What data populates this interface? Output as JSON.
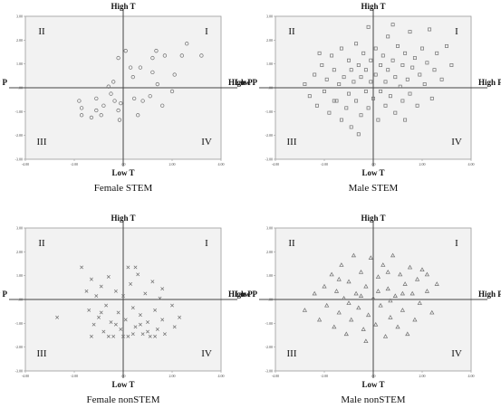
{
  "figure": {
    "background": "#ffffff",
    "plot_bg": "#f2f2f2",
    "frame_color": "#9a9a9a",
    "axis_color": "#444444",
    "marker_color": "#6e6e6e"
  },
  "chart_data": [
    {
      "type": "scatter",
      "title": "Female STEM",
      "quadrants": [
        "I",
        "II",
        "III",
        "IV"
      ],
      "axis_labels": {
        "top": "High T",
        "bottom": "Low T",
        "left": "Low P",
        "right": "High P"
      },
      "marker": "circle",
      "xlim": [
        -4.0,
        4.0
      ],
      "ylim": [
        -3.0,
        3.0
      ],
      "xticks": [
        "-4.00",
        "-2.00",
        ".00",
        "2.00",
        "4.00"
      ],
      "yticks": [
        "3.00",
        "2.00",
        "1.00",
        ".00",
        "-1.00",
        "-2.00",
        "-3.00"
      ],
      "points": [
        [
          -1.8,
          -0.55
        ],
        [
          -1.7,
          -0.85
        ],
        [
          -1.7,
          -1.15
        ],
        [
          -1.3,
          -1.25
        ],
        [
          -1.1,
          -0.45
        ],
        [
          -1.1,
          -0.95
        ],
        [
          -0.9,
          -1.15
        ],
        [
          -0.8,
          -0.75
        ],
        [
          -0.6,
          0.05
        ],
        [
          -0.5,
          -0.25
        ],
        [
          -0.4,
          0.25
        ],
        [
          -0.35,
          -0.55
        ],
        [
          -0.2,
          -0.95
        ],
        [
          -0.15,
          -1.35
        ],
        [
          -0.1,
          -0.65
        ],
        [
          0.1,
          1.55
        ],
        [
          0.3,
          0.85
        ],
        [
          0.4,
          0.45
        ],
        [
          0.45,
          -0.45
        ],
        [
          0.6,
          -1.15
        ],
        [
          0.7,
          0.85
        ],
        [
          0.8,
          -0.55
        ],
        [
          1.1,
          -0.35
        ],
        [
          1.2,
          0.65
        ],
        [
          1.2,
          1.25
        ],
        [
          1.35,
          1.55
        ],
        [
          1.4,
          0.15
        ],
        [
          1.6,
          -0.75
        ],
        [
          1.7,
          1.35
        ],
        [
          2.0,
          -0.15
        ],
        [
          2.1,
          0.55
        ],
        [
          2.4,
          1.35
        ],
        [
          2.6,
          1.85
        ],
        [
          -0.2,
          1.25
        ],
        [
          3.2,
          1.35
        ]
      ]
    },
    {
      "type": "scatter",
      "title": "Male STEM",
      "quadrants": [
        "I",
        "II",
        "III",
        "IV"
      ],
      "axis_labels": {
        "top": "High T",
        "bottom": "Low T",
        "left": "Low P",
        "right": "High P"
      },
      "marker": "square",
      "xlim": [
        -4.0,
        4.0
      ],
      "ylim": [
        -3.0,
        3.0
      ],
      "xticks": [
        "-4.00",
        "-2.00",
        ".00",
        "2.00",
        "4.00"
      ],
      "yticks": [
        "3.00",
        "2.00",
        "1.00",
        ".00",
        "-1.00",
        "-2.00",
        "-3.00"
      ],
      "points": [
        [
          -2.8,
          0.15
        ],
        [
          -2.6,
          -0.35
        ],
        [
          -2.4,
          0.55
        ],
        [
          -2.3,
          -0.75
        ],
        [
          -2.1,
          0.95
        ],
        [
          -2.0,
          -0.15
        ],
        [
          -1.9,
          0.35
        ],
        [
          -1.8,
          -1.05
        ],
        [
          -1.7,
          1.35
        ],
        [
          -1.6,
          0.75
        ],
        [
          -1.5,
          -0.55
        ],
        [
          -1.4,
          0.15
        ],
        [
          -1.3,
          1.65
        ],
        [
          -1.3,
          -1.35
        ],
        [
          -1.2,
          0.45
        ],
        [
          -1.1,
          -0.85
        ],
        [
          -1.0,
          1.15
        ],
        [
          -1.0,
          -0.25
        ],
        [
          -0.9,
          0.75
        ],
        [
          -0.9,
          -1.65
        ],
        [
          -0.8,
          0.25
        ],
        [
          -0.7,
          1.85
        ],
        [
          -0.7,
          -0.55
        ],
        [
          -0.6,
          0.95
        ],
        [
          -0.5,
          -1.15
        ],
        [
          -0.5,
          0.45
        ],
        [
          -0.4,
          1.45
        ],
        [
          -0.3,
          -0.15
        ],
        [
          -0.3,
          0.75
        ],
        [
          -0.2,
          -0.85
        ],
        [
          -0.1,
          1.15
        ],
        [
          -0.1,
          0.25
        ],
        [
          0.0,
          -0.45
        ],
        [
          0.1,
          1.65
        ],
        [
          0.1,
          0.55
        ],
        [
          0.2,
          -1.35
        ],
        [
          0.3,
          0.95
        ],
        [
          0.3,
          -0.15
        ],
        [
          0.4,
          1.35
        ],
        [
          0.5,
          0.25
        ],
        [
          0.5,
          -0.75
        ],
        [
          0.6,
          2.15
        ],
        [
          0.6,
          0.75
        ],
        [
          0.7,
          -0.35
        ],
        [
          0.8,
          1.15
        ],
        [
          0.9,
          0.45
        ],
        [
          0.9,
          -1.05
        ],
        [
          1.0,
          1.75
        ],
        [
          1.1,
          0.05
        ],
        [
          1.2,
          0.95
        ],
        [
          1.2,
          -0.55
        ],
        [
          1.3,
          1.45
        ],
        [
          1.4,
          0.35
        ],
        [
          1.5,
          2.35
        ],
        [
          1.5,
          -0.25
        ],
        [
          1.6,
          0.85
        ],
        [
          1.7,
          1.25
        ],
        [
          1.8,
          -0.75
        ],
        [
          1.9,
          0.55
        ],
        [
          2.0,
          1.65
        ],
        [
          2.1,
          0.15
        ],
        [
          2.2,
          1.05
        ],
        [
          2.3,
          2.45
        ],
        [
          2.4,
          -0.45
        ],
        [
          2.5,
          0.75
        ],
        [
          2.6,
          1.45
        ],
        [
          2.8,
          0.35
        ],
        [
          3.0,
          1.75
        ],
        [
          3.2,
          0.95
        ],
        [
          -1.6,
          -0.55
        ],
        [
          -0.2,
          2.55
        ],
        [
          0.8,
          2.65
        ],
        [
          -2.2,
          1.45
        ],
        [
          1.3,
          -1.35
        ],
        [
          -0.6,
          -1.95
        ]
      ]
    },
    {
      "type": "scatter",
      "title": "Female nonSTEM",
      "quadrants": [
        "I",
        "II",
        "III",
        "IV"
      ],
      "axis_labels": {
        "top": "High T",
        "bottom": "Low T",
        "left": "Low P",
        "right": "High P"
      },
      "marker": "cross",
      "xlim": [
        -4.0,
        4.0
      ],
      "ylim": [
        -3.0,
        3.0
      ],
      "xticks": [
        "-4.00",
        "-2.00",
        ".00",
        "2.00",
        "4.00"
      ],
      "yticks": [
        "3.00",
        "2.00",
        "1.00",
        ".00",
        "-1.00",
        "-2.00",
        "-3.00"
      ],
      "points": [
        [
          -2.7,
          -0.75
        ],
        [
          -1.7,
          1.35
        ],
        [
          -1.5,
          0.35
        ],
        [
          -1.4,
          -0.45
        ],
        [
          -1.3,
          0.85
        ],
        [
          -1.2,
          -1.05
        ],
        [
          -1.1,
          0.15
        ],
        [
          -1.0,
          -0.75
        ],
        [
          -0.9,
          0.55
        ],
        [
          -0.8,
          -1.35
        ],
        [
          -0.7,
          -0.25
        ],
        [
          -0.6,
          0.95
        ],
        [
          -0.5,
          -0.95
        ],
        [
          -0.4,
          -1.55
        ],
        [
          -0.3,
          0.35
        ],
        [
          -0.2,
          -0.55
        ],
        [
          -0.1,
          -1.25
        ],
        [
          0.0,
          0.15
        ],
        [
          0.1,
          -0.85
        ],
        [
          0.2,
          -1.55
        ],
        [
          0.3,
          0.65
        ],
        [
          0.4,
          -0.35
        ],
        [
          0.5,
          -1.15
        ],
        [
          0.6,
          1.05
        ],
        [
          0.7,
          -0.65
        ],
        [
          0.8,
          -1.45
        ],
        [
          0.9,
          0.25
        ],
        [
          1.0,
          -0.95
        ],
        [
          1.1,
          -1.55
        ],
        [
          1.2,
          0.75
        ],
        [
          1.3,
          -0.45
        ],
        [
          1.4,
          -1.25
        ],
        [
          1.5,
          0.05
        ],
        [
          1.6,
          -0.85
        ],
        [
          1.7,
          -1.45
        ],
        [
          2.0,
          -0.25
        ],
        [
          2.1,
          -1.15
        ],
        [
          -0.6,
          -1.55
        ],
        [
          -0.3,
          -1.05
        ],
        [
          0.0,
          -1.55
        ],
        [
          0.4,
          -1.45
        ],
        [
          0.7,
          -1.05
        ],
        [
          1.0,
          -1.35
        ],
        [
          1.3,
          -1.55
        ],
        [
          -0.9,
          -0.55
        ],
        [
          0.2,
          1.35
        ],
        [
          0.5,
          1.35
        ],
        [
          -1.3,
          -1.55
        ],
        [
          1.6,
          0.45
        ],
        [
          2.3,
          -0.75
        ]
      ]
    },
    {
      "type": "scatter",
      "title": "Male nonSTEM",
      "quadrants": [
        "I",
        "II",
        "III",
        "IV"
      ],
      "axis_labels": {
        "top": "High T",
        "bottom": "Low T",
        "left": "Low P",
        "right": "High P"
      },
      "marker": "triangle",
      "xlim": [
        -4.0,
        4.0
      ],
      "ylim": [
        -3.0,
        3.0
      ],
      "xticks": [
        "-4.00",
        "-2.00",
        ".00",
        "2.00",
        "4.00"
      ],
      "yticks": [
        "3.00",
        "2.00",
        "1.00",
        ".00",
        "-1.00",
        "-2.00",
        "-3.00"
      ],
      "points": [
        [
          -2.8,
          -0.45
        ],
        [
          -2.4,
          0.25
        ],
        [
          -2.2,
          -0.85
        ],
        [
          -2.0,
          0.55
        ],
        [
          -1.9,
          -0.25
        ],
        [
          -1.7,
          1.05
        ],
        [
          -1.6,
          -1.15
        ],
        [
          -1.5,
          0.35
        ],
        [
          -1.4,
          -0.55
        ],
        [
          -1.3,
          1.45
        ],
        [
          -1.2,
          0.05
        ],
        [
          -1.1,
          -1.45
        ],
        [
          -1.0,
          0.75
        ],
        [
          -0.9,
          -0.85
        ],
        [
          -0.8,
          1.85
        ],
        [
          -0.7,
          0.25
        ],
        [
          -0.6,
          -0.35
        ],
        [
          -0.5,
          1.15
        ],
        [
          -0.4,
          -1.25
        ],
        [
          -0.3,
          0.55
        ],
        [
          -0.2,
          -0.65
        ],
        [
          -0.1,
          1.75
        ],
        [
          0.0,
          0.05
        ],
        [
          0.1,
          -1.05
        ],
        [
          0.2,
          0.95
        ],
        [
          0.3,
          -0.25
        ],
        [
          0.4,
          1.45
        ],
        [
          0.5,
          -1.55
        ],
        [
          0.6,
          0.45
        ],
        [
          0.7,
          -0.75
        ],
        [
          0.8,
          1.85
        ],
        [
          0.9,
          0.15
        ],
        [
          1.0,
          -1.15
        ],
        [
          1.1,
          1.05
        ],
        [
          1.2,
          -0.45
        ],
        [
          1.3,
          0.65
        ],
        [
          1.4,
          -1.45
        ],
        [
          1.5,
          1.35
        ],
        [
          1.6,
          0.25
        ],
        [
          1.7,
          -0.85
        ],
        [
          1.8,
          0.85
        ],
        [
          1.9,
          -0.15
        ],
        [
          2.0,
          1.25
        ],
        [
          2.2,
          0.35
        ],
        [
          2.4,
          -0.55
        ],
        [
          2.6,
          0.65
        ],
        [
          -0.5,
          0.15
        ],
        [
          0.2,
          0.35
        ],
        [
          -1.0,
          -0.15
        ],
        [
          0.7,
          -0.05
        ],
        [
          1.2,
          0.25
        ],
        [
          -0.3,
          -1.75
        ],
        [
          0.6,
          1.15
        ],
        [
          -1.4,
          0.85
        ],
        [
          2.2,
          1.05
        ]
      ]
    }
  ]
}
